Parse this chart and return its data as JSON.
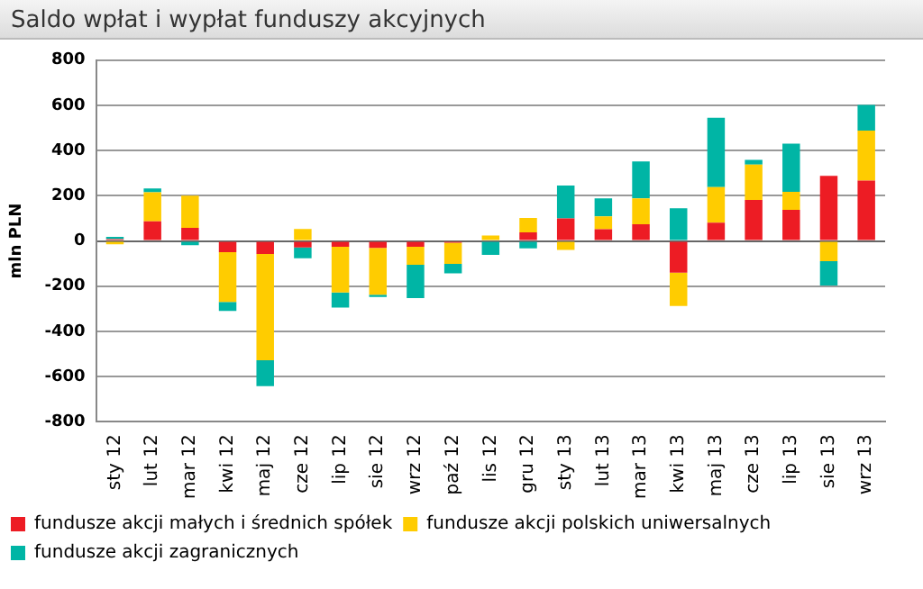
{
  "chart_data": {
    "type": "bar",
    "title": "Saldo wpłat i wypłat funduszy akcyjnych",
    "ylabel": "mln PLN",
    "categories": [
      "sty 12",
      "lut 12",
      "mar 12",
      "kwi 12",
      "maj 12",
      "cze 12",
      "lip 12",
      "sie 12",
      "wrz 12",
      "paź 12",
      "lis 12",
      "gru 12",
      "sty 13",
      "lut 13",
      "mar 13",
      "kwi 13",
      "maj 13",
      "cze 13",
      "lip 13",
      "sie 13",
      "wrz 13"
    ],
    "series": [
      {
        "name": "fundusze akcji małych i średnich spółek",
        "color": "#ed1c24",
        "values": [
          8,
          87,
          58,
          -50,
          -58,
          -29,
          -26,
          -31,
          -26,
          -8,
          0,
          38,
          100,
          52,
          74,
          -140,
          81,
          181,
          138,
          288,
          267
        ]
      },
      {
        "name": "fundusze akcji polskich uniwersalnych",
        "color": "#ffcc00",
        "values": [
          -15,
          128,
          142,
          -220,
          -470,
          53,
          -202,
          -207,
          -80,
          -94,
          24,
          64,
          -40,
          57,
          114,
          -148,
          157,
          157,
          79,
          -90,
          221
        ]
      },
      {
        "name": "fundusze akcji zagranicznych",
        "color": "#00b5a5",
        "values": [
          10,
          17,
          -19,
          -40,
          -115,
          -48,
          -67,
          -10,
          -147,
          -41,
          -62,
          -33,
          145,
          79,
          164,
          145,
          307,
          21,
          214,
          -107,
          114
        ]
      }
    ],
    "stacked": true,
    "ylim": [
      -800,
      800
    ],
    "yticks": [
      -800,
      -600,
      -400,
      -200,
      0,
      200,
      400,
      600,
      800
    ],
    "grid": "y",
    "legend": "bottom"
  }
}
